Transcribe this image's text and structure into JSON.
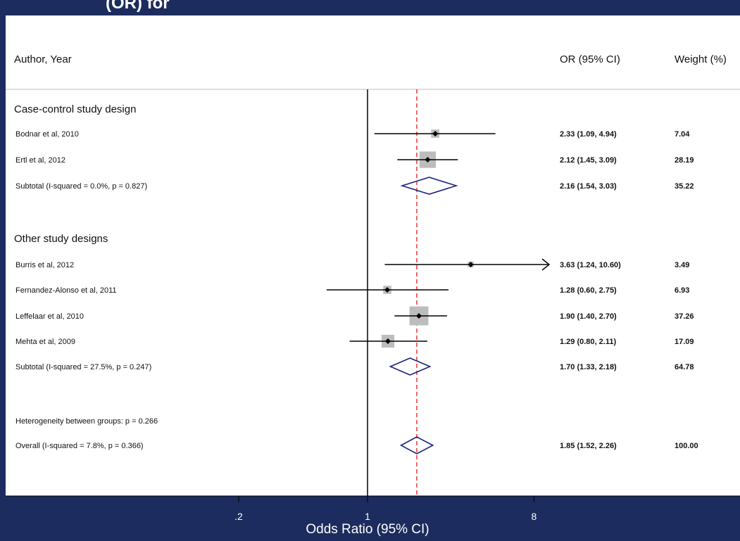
{
  "chart_data": {
    "type": "forest",
    "title_partial": "(OR) for",
    "columns": {
      "study": "Author, Year",
      "effect": "OR (95% CI)",
      "weight": "Weight (%)"
    },
    "xlabel": "Odds Ratio (95% CI)",
    "x_scale": "log",
    "x_ticks": [
      {
        "value": 0.2,
        "label": ".2"
      },
      {
        "value": 1,
        "label": "1"
      },
      {
        "value": 8,
        "label": "8"
      }
    ],
    "null_line": 1,
    "overall_line": 1.85,
    "groups": [
      {
        "name": "Case-control study design",
        "studies": [
          {
            "label": "Bodnar et al, 2010",
            "or": 2.33,
            "lower": 1.09,
            "upper": 4.94,
            "text": "2.33 (1.09, 4.94)",
            "weight": "7.04"
          },
          {
            "label": "Ertl et al, 2012",
            "or": 2.12,
            "lower": 1.45,
            "upper": 3.09,
            "text": "2.12 (1.45, 3.09)",
            "weight": "28.19"
          }
        ],
        "subtotal": {
          "label": "Subtotal  (I-squared = 0.0%, p = 0.827)",
          "or": 2.16,
          "lower": 1.54,
          "upper": 3.03,
          "text": "2.16 (1.54, 3.03)",
          "weight": "35.22"
        }
      },
      {
        "name": "Other study designs",
        "studies": [
          {
            "label": "Burris et al, 2012",
            "or": 3.63,
            "lower": 1.24,
            "upper": 10.6,
            "text": "3.63 (1.24, 10.60)",
            "weight": "3.49",
            "clipped_upper": true
          },
          {
            "label": "Fernandez-Alonso et al, 2011",
            "or": 1.28,
            "lower": 0.6,
            "upper": 2.75,
            "text": "1.28 (0.60, 2.75)",
            "weight": "6.93"
          },
          {
            "label": "Leffelaar et al, 2010",
            "or": 1.9,
            "lower": 1.4,
            "upper": 2.7,
            "text": "1.90 (1.40, 2.70)",
            "weight": "37.26"
          },
          {
            "label": "Mehta et al, 2009",
            "or": 1.29,
            "lower": 0.8,
            "upper": 2.11,
            "text": "1.29 (0.80, 2.11)",
            "weight": "17.09"
          }
        ],
        "subtotal": {
          "label": "Subtotal  (I-squared = 27.5%, p = 0.247)",
          "or": 1.7,
          "lower": 1.33,
          "upper": 2.18,
          "text": "1.70 (1.33, 2.18)",
          "weight": "64.78"
        }
      }
    ],
    "heterogeneity": "Heterogeneity between groups: p = 0.266",
    "overall": {
      "label": "Overall  (I-squared = 7.8%, p = 0.366)",
      "or": 1.85,
      "lower": 1.52,
      "upper": 2.26,
      "text": "1.85 (1.52, 2.26)",
      "weight": "100.00"
    }
  },
  "colors": {
    "background": "#1d2c5e",
    "panel": "#ffffff",
    "diamond": "#1a237e",
    "overall_line": "#e53935",
    "square": "#bdbdbd"
  }
}
